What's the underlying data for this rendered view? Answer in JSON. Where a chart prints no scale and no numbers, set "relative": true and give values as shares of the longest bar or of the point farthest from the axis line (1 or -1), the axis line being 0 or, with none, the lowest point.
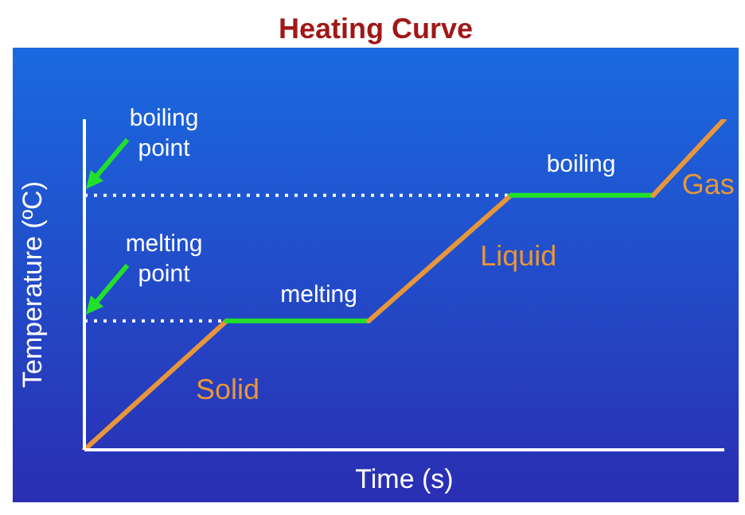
{
  "chart_data": {
    "type": "line",
    "title": "Heating Curve",
    "xlabel": "Time (s)",
    "ylabel": "Temperature (ºC)",
    "relative": true,
    "marker": "none",
    "line_style": "solid",
    "categories": [
      null,
      null,
      null,
      null,
      null,
      null,
      null,
      null,
      null,
      null
    ],
    "series": [
      {
        "name": "Solid",
        "color": "#e8963a",
        "values": [
          0,
          null,
          0.39,
          null,
          null,
          null,
          null,
          null,
          null,
          null
        ]
      },
      {
        "color": "#22e02a",
        "values": [
          null,
          null,
          0.39,
          null,
          0.39,
          null,
          null,
          null,
          null,
          null
        ]
      },
      {
        "name": "Liquid",
        "color": "#e8963a",
        "values": [
          null,
          null,
          null,
          null,
          0.39,
          null,
          0.77,
          null,
          null,
          null
        ]
      },
      {
        "color": "#22e02a",
        "values": [
          null,
          null,
          null,
          null,
          null,
          null,
          0.77,
          null,
          0.77,
          null
        ]
      },
      {
        "name": "Gas",
        "color": "#e8963a",
        "values": [
          null,
          null,
          null,
          null,
          null,
          null,
          null,
          null,
          0.77,
          1
        ]
      }
    ],
    "annotations": [
      "melting",
      "boiling"
    ],
    "ref_lines": [
      {
        "axis": "y",
        "value": 0.39,
        "label": "melting point",
        "color": "#ffffff",
        "line_style": "dotted"
      },
      {
        "axis": "y",
        "value": 0.77,
        "label": "boiling point",
        "color": "#ffffff",
        "line_style": "dotted"
      }
    ]
  }
}
